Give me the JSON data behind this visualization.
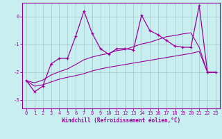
{
  "xlabel": "Windchill (Refroidissement éolien,°C)",
  "x": [
    0,
    1,
    2,
    3,
    4,
    5,
    6,
    7,
    8,
    9,
    10,
    11,
    12,
    13,
    14,
    15,
    16,
    17,
    18,
    19,
    20,
    21,
    22,
    23
  ],
  "y_main": [
    -2.3,
    -2.7,
    -2.5,
    -1.7,
    -1.5,
    -1.5,
    -0.7,
    0.2,
    -0.6,
    -1.15,
    -1.35,
    -1.15,
    -1.15,
    -1.2,
    0.05,
    -0.5,
    -0.65,
    -0.85,
    -1.05,
    -1.1,
    -1.1,
    0.4,
    -2.0,
    -2.0
  ],
  "y_lower": [
    -2.3,
    -2.5,
    -2.45,
    -2.35,
    -2.25,
    -2.18,
    -2.12,
    -2.05,
    -1.95,
    -1.88,
    -1.82,
    -1.77,
    -1.72,
    -1.67,
    -1.62,
    -1.57,
    -1.52,
    -1.47,
    -1.42,
    -1.37,
    -1.32,
    -1.25,
    -2.0,
    -2.0
  ],
  "y_upper": [
    -2.3,
    -2.38,
    -2.28,
    -2.1,
    -1.98,
    -1.88,
    -1.72,
    -1.55,
    -1.45,
    -1.38,
    -1.32,
    -1.22,
    -1.18,
    -1.08,
    -0.98,
    -0.92,
    -0.82,
    -0.72,
    -0.68,
    -0.62,
    -0.58,
    -1.1,
    -2.0,
    -2.0
  ],
  "bg_color": "#c8eef0",
  "line_color": "#990099",
  "grid_color": "#aacccc",
  "ylim": [
    -3.3,
    0.5
  ],
  "yticks": [
    0,
    -1,
    -2,
    -3
  ],
  "xticks": [
    0,
    1,
    2,
    3,
    4,
    5,
    6,
    7,
    8,
    9,
    10,
    11,
    12,
    13,
    14,
    15,
    16,
    17,
    18,
    19,
    20,
    21,
    22,
    23
  ]
}
